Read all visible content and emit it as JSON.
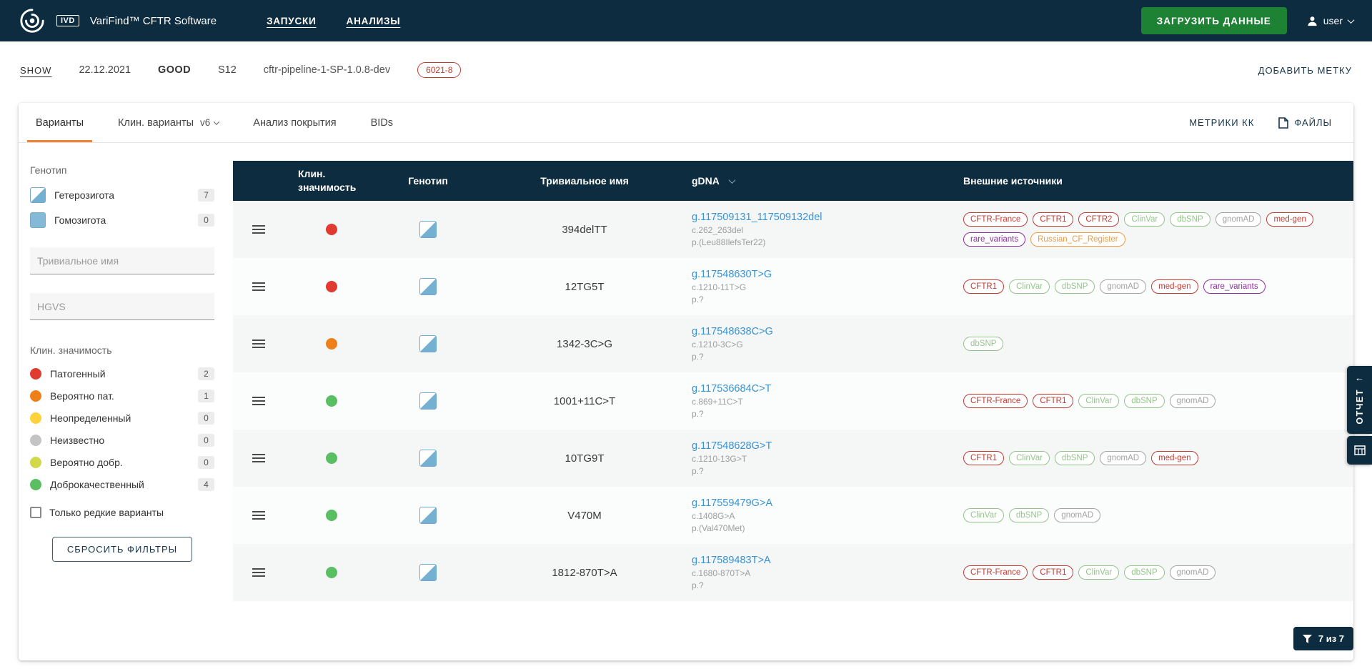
{
  "colors": {
    "navy": "#0d2c3f",
    "accent_orange": "#ee8435",
    "green_button": "#1e8234",
    "link_blue": "#3793d5",
    "badge_styles": {
      "red": "#c23b32",
      "green": "#93c58b",
      "gray": "#a3a3a3",
      "purple": "#8b2f9e",
      "orange": "#ef9b40"
    }
  },
  "topbar": {
    "ivd": "IVD",
    "title": "VariFind™ CFTR Software",
    "nav": [
      "ЗАПУСКИ",
      "АНАЛИЗЫ"
    ],
    "upload": "ЗАГРУЗИТЬ ДАННЫЕ",
    "user": "user"
  },
  "runbar": {
    "show": "SHOW",
    "date": "22.12.2021",
    "status": "GOOD",
    "sample": "S12",
    "pipeline": "cftr-pipeline-1-SP-1.0.8-dev",
    "badge": "6021-8",
    "add_tag": "ДОБАВИТЬ МЕТКУ"
  },
  "tabs": {
    "items": [
      "Варианты",
      "Клин. варианты",
      "Анализ покрытия",
      "BIDs"
    ],
    "version": "v6",
    "metrics": "МЕТРИКИ КК",
    "files": "ФАЙЛЫ"
  },
  "filters": {
    "genotype_title": "Генотип",
    "genotype": [
      {
        "label": "Гетерозигота",
        "count": 7,
        "zygosity": "het"
      },
      {
        "label": "Гомозигота",
        "count": 0,
        "zygosity": "hom"
      }
    ],
    "trivial_placeholder": "Тривиальное имя",
    "hgvs_placeholder": "HGVS",
    "clin_title": "Клин. значимость",
    "significance": [
      {
        "label": "Патогенный",
        "count": 2,
        "color": "#e13a30"
      },
      {
        "label": "Вероятно пат.",
        "count": 1,
        "color": "#ef7f1b"
      },
      {
        "label": "Неопределенный",
        "count": 0,
        "color": "#fdd23a"
      },
      {
        "label": "Неизвестно",
        "count": 0,
        "color": "#c4c4c4"
      },
      {
        "label": "Вероятно добр.",
        "count": 0,
        "color": "#cfd94a"
      },
      {
        "label": "Доброкачественный",
        "count": 4,
        "color": "#5abe63"
      }
    ],
    "rare_label": "Только редкие варианты",
    "reset": "СБРОСИТЬ ФИЛЬТРЫ"
  },
  "table": {
    "headers": {
      "significance": "Клин. значимость",
      "genotype": "Генотип",
      "trivial_name": "Тривиальное имя",
      "gdna": "gDNA",
      "sources": "Внешние источники"
    },
    "rows": [
      {
        "significance_color": "#e13a30",
        "genotype": "het",
        "name": "394delTT",
        "gdna": "g.117509131_117509132del",
        "cdna": "c.262_263del",
        "protein": "p.(Leu88IlefsTer22)",
        "sources": [
          {
            "label": "CFTR-France",
            "style": "red"
          },
          {
            "label": "CFTR1",
            "style": "red"
          },
          {
            "label": "CFTR2",
            "style": "red"
          },
          {
            "label": "ClinVar",
            "style": "green"
          },
          {
            "label": "dbSNP",
            "style": "green"
          },
          {
            "label": "gnomAD",
            "style": "gray"
          },
          {
            "label": "med-gen",
            "style": "red"
          },
          {
            "label": "rare_variants",
            "style": "purple"
          },
          {
            "label": "Russian_CF_Register",
            "style": "orange"
          }
        ]
      },
      {
        "significance_color": "#e13a30",
        "genotype": "het",
        "name": "12TG5T",
        "gdna": "g.117548630T>G",
        "cdna": "c.1210-11T>G",
        "protein": "p.?",
        "sources": [
          {
            "label": "CFTR1",
            "style": "red"
          },
          {
            "label": "ClinVar",
            "style": "green"
          },
          {
            "label": "dbSNP",
            "style": "green"
          },
          {
            "label": "gnomAD",
            "style": "gray"
          },
          {
            "label": "med-gen",
            "style": "red"
          },
          {
            "label": "rare_variants",
            "style": "purple"
          }
        ]
      },
      {
        "significance_color": "#ef7f1b",
        "genotype": "het",
        "name": "1342-3C>G",
        "gdna": "g.117548638C>G",
        "cdna": "c.1210-3C>G",
        "protein": "p.?",
        "sources": [
          {
            "label": "dbSNP",
            "style": "green"
          }
        ]
      },
      {
        "significance_color": "#5abe63",
        "genotype": "het",
        "name": "1001+11C>T",
        "gdna": "g.117536684C>T",
        "cdna": "c.869+11C>T",
        "protein": "p.?",
        "sources": [
          {
            "label": "CFTR-France",
            "style": "red"
          },
          {
            "label": "CFTR1",
            "style": "red"
          },
          {
            "label": "ClinVar",
            "style": "green"
          },
          {
            "label": "dbSNP",
            "style": "green"
          },
          {
            "label": "gnomAD",
            "style": "gray"
          }
        ]
      },
      {
        "significance_color": "#5abe63",
        "genotype": "het",
        "name": "10TG9T",
        "gdna": "g.117548628G>T",
        "cdna": "c.1210-13G>T",
        "protein": "p.?",
        "sources": [
          {
            "label": "CFTR1",
            "style": "red"
          },
          {
            "label": "ClinVar",
            "style": "green"
          },
          {
            "label": "dbSNP",
            "style": "green"
          },
          {
            "label": "gnomAD",
            "style": "gray"
          },
          {
            "label": "med-gen",
            "style": "red"
          }
        ]
      },
      {
        "significance_color": "#5abe63",
        "genotype": "het",
        "name": "V470M",
        "gdna": "g.117559479G>A",
        "cdna": "c.1408G>A",
        "protein": "p.(Val470Met)",
        "sources": [
          {
            "label": "ClinVar",
            "style": "green"
          },
          {
            "label": "dbSNP",
            "style": "green"
          },
          {
            "label": "gnomAD",
            "style": "gray"
          }
        ]
      },
      {
        "significance_color": "#5abe63",
        "genotype": "het",
        "name": "1812-870T>A",
        "gdna": "g.117589483T>A",
        "cdna": "c.1680-870T>A",
        "protein": "p.?",
        "sources": [
          {
            "label": "CFTR-France",
            "style": "red"
          },
          {
            "label": "CFTR1",
            "style": "red"
          },
          {
            "label": "ClinVar",
            "style": "green"
          },
          {
            "label": "dbSNP",
            "style": "green"
          },
          {
            "label": "gnomAD",
            "style": "gray"
          }
        ]
      }
    ]
  },
  "report": {
    "label": "ОТЧЕТ"
  },
  "footer": {
    "count": "7 из 7"
  }
}
